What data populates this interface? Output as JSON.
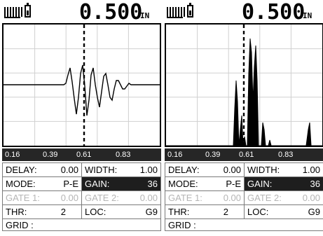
{
  "panels": [
    {
      "id": "left",
      "display_mode": "rf-waveform",
      "reading": "0.500",
      "unit": "IN",
      "scale_ticks": [
        "0.16",
        "0.39",
        "0.61",
        "0.83"
      ],
      "params": {
        "delay_label": "DELAY:",
        "delay_value": "0.00",
        "width_label": "WIDTH:",
        "width_value": "1.00",
        "mode_label": "MODE:",
        "mode_value": "P-E",
        "gain_label": "GAIN:",
        "gain_value": "36",
        "gate1_label": "GATE 1:",
        "gate1_value": "0.00",
        "gate2_label": "GATE 2:",
        "gate2_value": "0.00",
        "thr_label": "THR:",
        "thr_value": "2",
        "loc_label": "LOC:",
        "loc_value": "G9",
        "grid_label": "GRID :"
      }
    },
    {
      "id": "right",
      "display_mode": "rectified-waveform",
      "reading": "0.500",
      "unit": "IN",
      "scale_ticks": [
        "0.16",
        "0.39",
        "0.61",
        "0.83"
      ],
      "params": {
        "delay_label": "DELAY:",
        "delay_value": "0.00",
        "width_label": "WIDTH:",
        "width_value": "1.00",
        "mode_label": "MODE:",
        "mode_value": "P-E",
        "gain_label": "GAIN:",
        "gain_value": "36",
        "gate1_label": "GATE 1:",
        "gate1_value": "0.00",
        "gate2_label": "GATE 2:",
        "gate2_value": "0.00",
        "thr_label": "THR:",
        "thr_value": "2",
        "loc_label": "LOC:",
        "loc_value": "G9",
        "grid_label": "GRID :"
      }
    }
  ],
  "icons": {
    "signal": "signal-strength-icon",
    "battery": "battery-icon"
  },
  "colors": {
    "highlight": "#1e1e1e",
    "disabled_text": "#b5b5b5",
    "scale_bar": "#262626"
  }
}
